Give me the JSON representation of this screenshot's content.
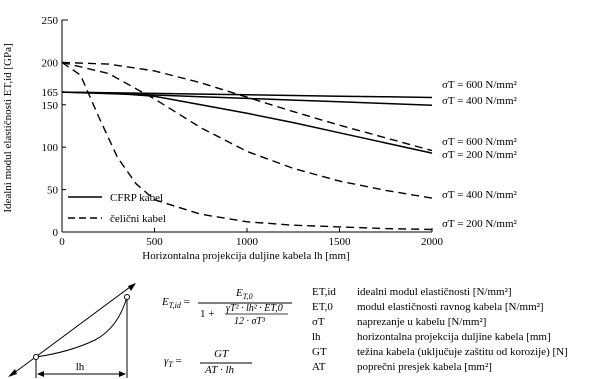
{
  "chart_data": {
    "type": "line",
    "ylabel": "Idealni modul elastičnosti ET,id [GPa]",
    "xlabel": "Horizontalna projekcija duljine kabela lh [mm]",
    "xlim": [
      0,
      2000
    ],
    "ylim": [
      0,
      250
    ],
    "x_ticks": [
      "0",
      "500",
      "1000",
      "1500",
      "2000"
    ],
    "y_ticks": [
      "250",
      "200",
      "165",
      "150",
      "100",
      "50",
      "0"
    ],
    "y_tick_values": [
      250,
      200,
      165,
      150,
      100,
      50,
      0
    ],
    "grid": false,
    "legend": {
      "placement": "bottom-left",
      "items": [
        {
          "label": "CFRP kabel",
          "style": "solid"
        },
        {
          "label": "čelični kabel",
          "style": "dashed"
        }
      ]
    },
    "series": [
      {
        "style": "solid",
        "label": "σT = 600 N/mm²",
        "x": [
          0,
          250,
          500,
          750,
          1000,
          1250,
          1500,
          1750,
          2000
        ],
        "y": [
          165,
          164.2,
          163.4,
          162.6,
          161.8,
          161,
          160.2,
          159.4,
          158.6
        ]
      },
      {
        "style": "solid",
        "label": "σT = 400 N/mm²",
        "x": [
          0,
          250,
          500,
          750,
          1000,
          1250,
          1500,
          1750,
          2000
        ],
        "y": [
          165,
          163.2,
          161.5,
          159.5,
          157.5,
          155.5,
          153.5,
          151.5,
          149.5
        ]
      },
      {
        "style": "solid",
        "label": "σT = 200 N/mm²",
        "x": [
          0,
          250,
          500,
          750,
          1000,
          1250,
          1500,
          1750,
          2000
        ],
        "y": [
          165,
          164,
          160,
          150,
          140,
          129,
          117,
          105,
          93
        ]
      },
      {
        "style": "dashed",
        "label": "σT = 600 N/mm²",
        "x": [
          0,
          250,
          500,
          750,
          1000,
          1250,
          1500,
          1750,
          2000
        ],
        "y": [
          200,
          198,
          190,
          176,
          159,
          142,
          126,
          111,
          96
        ]
      },
      {
        "style": "dashed",
        "label": "σT = 400 N/mm²",
        "x": [
          0,
          250,
          500,
          750,
          1000,
          1250,
          1500,
          1750,
          2000
        ],
        "y": [
          200,
          187,
          157,
          123,
          95,
          75,
          60,
          49,
          40
        ]
      },
      {
        "style": "dashed",
        "label": "σT = 200 N/mm²",
        "x": [
          0,
          100,
          200,
          300,
          400,
          500,
          750,
          1000,
          1250,
          1500,
          1750,
          2000
        ],
        "y": [
          200,
          185,
          135,
          88,
          57,
          38,
          21,
          12,
          8,
          6,
          4,
          3
        ]
      }
    ]
  },
  "formulas": {
    "e_lhs": "E",
    "e_lhs_sub": "T,id",
    "eq": "=",
    "e_num": "E",
    "e_num_sub": "T,0",
    "one_plus": "1 +",
    "frac_top": "γT² · lh² · ET,0",
    "frac_bottom": "12 · σT³",
    "g_lhs": "γ",
    "g_lhs_sub": "T",
    "g_num": "GT",
    "g_den": "AT · lh"
  },
  "sketch": {
    "span_label": "lh"
  },
  "legend_defs": [
    {
      "symbol": "ET,id",
      "text": "idealni modul elastičnosti [N/mm²]"
    },
    {
      "symbol": "ET,0",
      "text": "modul elastičnosti ravnog kabela [N/mm²]"
    },
    {
      "symbol": "σT",
      "text": "naprezanje u kabelu [N/mm²]"
    },
    {
      "symbol": "lh",
      "text": "horizontalna projekcija duljine kabela [mm]"
    },
    {
      "symbol": "GT",
      "text": "težina kabela (uključuje zaštitu od korozije) [N]"
    },
    {
      "symbol": "AT",
      "text": "poprečni presjek kabela [mm²]"
    }
  ]
}
